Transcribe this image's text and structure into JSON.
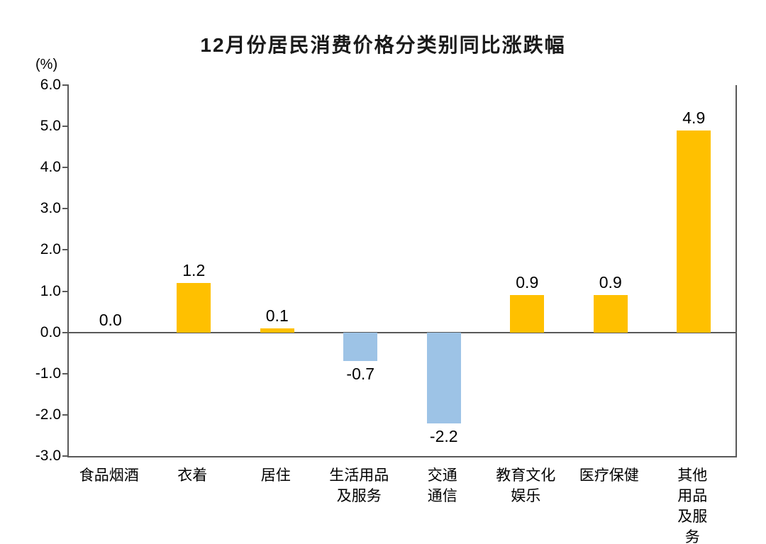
{
  "chart_data": {
    "type": "bar",
    "title": "12月份居民消费价格分类别同比涨跌幅",
    "ylabel": "(%)",
    "categories": [
      "食品烟酒",
      "衣着",
      "居住",
      "生活用品\n及服务",
      "交通\n通信",
      "教育文化\n娱乐",
      "医疗保健",
      "其他用品\n及服务"
    ],
    "values": [
      0.0,
      1.2,
      0.1,
      -0.7,
      -2.2,
      0.9,
      0.9,
      4.9
    ],
    "value_labels": [
      "0.0",
      "1.2",
      "0.1",
      "-0.7",
      "-2.2",
      "0.9",
      "0.9",
      "4.9"
    ],
    "ylim": [
      -3.0,
      6.0
    ],
    "yticks": [
      6.0,
      5.0,
      4.0,
      3.0,
      2.0,
      1.0,
      0.0,
      -1.0,
      -2.0,
      -3.0
    ],
    "ytick_labels": [
      "6.0",
      "5.0",
      "4.0",
      "3.0",
      "2.0",
      "1.0",
      "0.0",
      "-1.0",
      "-2.0",
      "-3.0"
    ],
    "positive_color": "#FFC000",
    "negative_color": "#9DC3E6",
    "axis_color": "#595959",
    "grid": false,
    "legend": "none"
  }
}
